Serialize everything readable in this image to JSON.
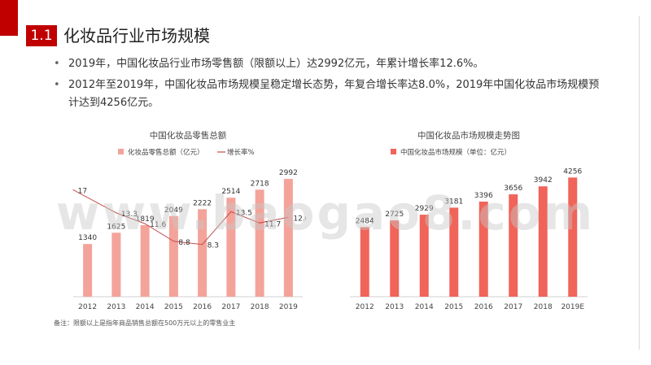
{
  "header": {
    "section_number": "1.1",
    "title": "化妆品行业市场规模"
  },
  "bullets": [
    "2019年，中国化妆品行业市场零售额（限额以上）达2992亿元，年累计增长率12.6%。",
    "2012年至2019年，中国化妆品市场规模呈稳定增长态势，年复合增长率达8.0%，2019年中国化妆品市场规模预计达到4256亿元。"
  ],
  "footnote": "备注：限额以上是指年商品销售总额在500万元以上的零售业主",
  "watermark": "www.baogao8.com",
  "colors": {
    "accent": "#c00000",
    "left_bar": "#f4a39a",
    "left_line": "#c0504d",
    "right_bar": "#f0645a"
  },
  "chart_data": [
    {
      "type": "bar",
      "title": "中国化妆品零售总额",
      "categories": [
        "2012",
        "2013",
        "2014",
        "2015",
        "2016",
        "2017",
        "2018",
        "2019"
      ],
      "series": [
        {
          "name": "化妆品零售总额（亿元）",
          "type": "bar",
          "values": [
            1340,
            1625,
            1819,
            2049,
            2222,
            2514,
            2718,
            2992
          ]
        },
        {
          "name": "增长率%",
          "type": "line",
          "values": [
            17,
            13.3,
            11.6,
            8.8,
            8.3,
            13.5,
            11.7,
            12.6
          ]
        }
      ],
      "ylim": [
        0,
        3200
      ],
      "y2lim": [
        0,
        20
      ],
      "grid": false,
      "legend": "top"
    },
    {
      "type": "bar",
      "title": "中国化妆品市场规模走势图",
      "categories": [
        "2012",
        "2013",
        "2014",
        "2015",
        "2016",
        "2017",
        "2018",
        "2019E"
      ],
      "series": [
        {
          "name": "中国化妆品市场规模（单位：亿元）",
          "values": [
            2484,
            2725,
            2929,
            3181,
            3396,
            3656,
            3942,
            4256
          ]
        }
      ],
      "ylim": [
        0,
        4500
      ],
      "grid": false,
      "legend": "top"
    }
  ]
}
